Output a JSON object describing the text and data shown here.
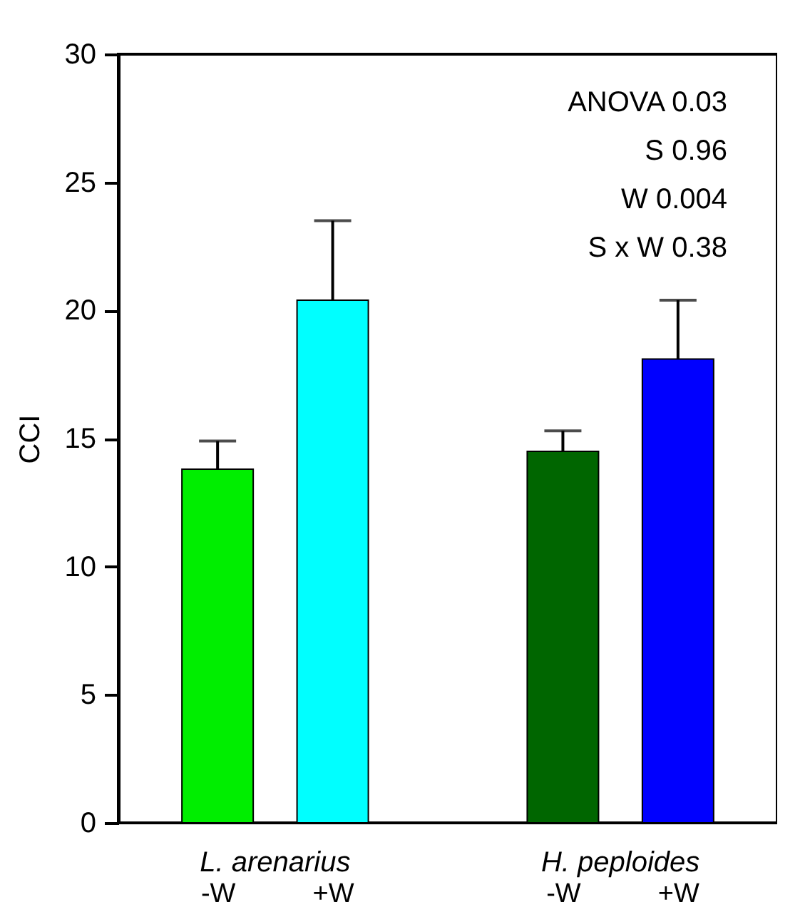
{
  "chart_data": {
    "type": "bar",
    "ylabel": "CCI",
    "categories": [
      "-W",
      "+W",
      null,
      "-W",
      "+W"
    ],
    "values": [
      13.8,
      20.4,
      null,
      14.5,
      18.1
    ],
    "colors": [
      "#00ee00",
      "#00ffff",
      null,
      "#006600",
      "#0000ff"
    ],
    "errors": [
      [
        13.8,
        14.9
      ],
      [
        20.4,
        23.5
      ],
      null,
      [
        14.5,
        15.3
      ],
      [
        18.1,
        20.4
      ]
    ],
    "ylim": [
      0,
      30
    ],
    "yticks": [
      0,
      5,
      10,
      15,
      20,
      25,
      30
    ],
    "annotations": [
      "ANOVA 0.03",
      "S 0.96",
      "W 0.004",
      "S x W 0.38",
      "L. arenarius",
      "H. peploides"
    ]
  }
}
